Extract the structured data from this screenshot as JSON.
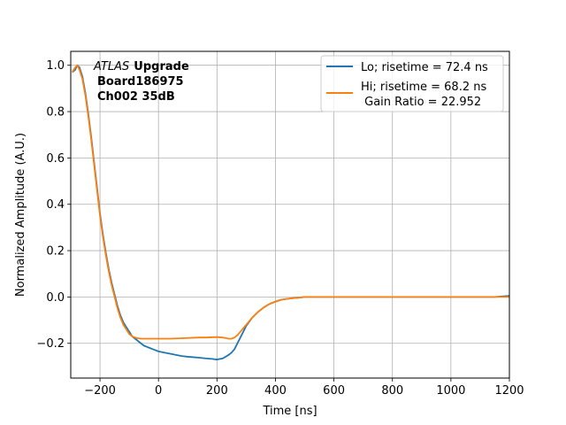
{
  "chart_data": {
    "type": "line",
    "xlabel": "Time [ns]",
    "ylabel": "Normalized Amplitude (A.U.)",
    "xlim": [
      -300,
      1200
    ],
    "ylim": [
      -0.35,
      1.06
    ],
    "xticks": [
      -200,
      0,
      200,
      400,
      600,
      800,
      1000,
      1200
    ],
    "yticks": [
      -0.2,
      0.0,
      0.2,
      0.4,
      0.6,
      0.8,
      1.0
    ],
    "xtick_labels": [
      "−200",
      "0",
      "200",
      "400",
      "600",
      "800",
      "1000",
      "1200"
    ],
    "ytick_labels": [
      "−0.2",
      "0.0",
      "0.2",
      "0.4",
      "0.6",
      "0.8",
      "1.0"
    ],
    "grid": true,
    "legend_position": "top-right",
    "annotation": {
      "line1_italic": "ATLAS",
      "line1_bold": "Upgrade",
      "line2": "Board186975",
      "line3": "Ch002 35dB"
    },
    "series": [
      {
        "name": "Lo; risetime = 72.4 ns",
        "color": "#1f77b4",
        "x": [
          -295,
          -285,
          -278,
          -270,
          -260,
          -250,
          -240,
          -230,
          -220,
          -210,
          -200,
          -190,
          -180,
          -170,
          -160,
          -150,
          -140,
          -130,
          -120,
          -110,
          -100,
          -90,
          -80,
          -70,
          -60,
          -50,
          -40,
          -30,
          -20,
          -10,
          0,
          20,
          40,
          60,
          80,
          100,
          120,
          140,
          160,
          180,
          200,
          220,
          240,
          250,
          260,
          270,
          280,
          290,
          300,
          320,
          340,
          360,
          380,
          400,
          420,
          440,
          460,
          480,
          500,
          550,
          600,
          650,
          700,
          750,
          800,
          850,
          900,
          950,
          1000,
          1050,
          1100,
          1150,
          1200
        ],
        "y": [
          0.97,
          0.98,
          1.0,
          0.99,
          0.95,
          0.88,
          0.79,
          0.69,
          0.58,
          0.47,
          0.36,
          0.27,
          0.19,
          0.12,
          0.06,
          0.01,
          -0.04,
          -0.08,
          -0.11,
          -0.13,
          -0.15,
          -0.17,
          -0.18,
          -0.19,
          -0.2,
          -0.21,
          -0.215,
          -0.22,
          -0.225,
          -0.23,
          -0.235,
          -0.24,
          -0.245,
          -0.25,
          -0.255,
          -0.258,
          -0.26,
          -0.262,
          -0.265,
          -0.267,
          -0.27,
          -0.265,
          -0.25,
          -0.24,
          -0.225,
          -0.2,
          -0.175,
          -0.15,
          -0.125,
          -0.09,
          -0.065,
          -0.045,
          -0.03,
          -0.02,
          -0.012,
          -0.008,
          -0.005,
          -0.003,
          0.0,
          0.0,
          0.0,
          0.0,
          0.0,
          0.0,
          0.0,
          0.0,
          0.0,
          0.0,
          0.0,
          0.0,
          0.0,
          0.0,
          0.005
        ]
      },
      {
        "name": "Hi; risetime = 68.2 ns\n Gain Ratio = 22.952",
        "color": "#ff7f0e",
        "x": [
          -295,
          -285,
          -278,
          -270,
          -260,
          -250,
          -240,
          -230,
          -220,
          -210,
          -200,
          -190,
          -180,
          -170,
          -160,
          -150,
          -140,
          -130,
          -120,
          -110,
          -100,
          -90,
          -80,
          -70,
          -60,
          -50,
          -40,
          -30,
          -20,
          -10,
          0,
          20,
          40,
          60,
          80,
          100,
          120,
          140,
          160,
          180,
          200,
          220,
          240,
          250,
          260,
          270,
          280,
          290,
          300,
          320,
          340,
          360,
          380,
          400,
          420,
          440,
          460,
          480,
          500,
          550,
          600,
          650,
          700,
          750,
          800,
          850,
          900,
          950,
          1000,
          1050,
          1100,
          1150,
          1200
        ],
        "y": [
          0.97,
          0.99,
          1.0,
          0.98,
          0.94,
          0.87,
          0.78,
          0.68,
          0.57,
          0.46,
          0.35,
          0.26,
          0.18,
          0.11,
          0.05,
          0.0,
          -0.05,
          -0.09,
          -0.12,
          -0.14,
          -0.16,
          -0.17,
          -0.175,
          -0.178,
          -0.18,
          -0.18,
          -0.18,
          -0.18,
          -0.18,
          -0.18,
          -0.18,
          -0.18,
          -0.18,
          -0.179,
          -0.178,
          -0.177,
          -0.176,
          -0.175,
          -0.175,
          -0.174,
          -0.173,
          -0.175,
          -0.18,
          -0.18,
          -0.175,
          -0.165,
          -0.15,
          -0.135,
          -0.12,
          -0.09,
          -0.065,
          -0.045,
          -0.03,
          -0.02,
          -0.012,
          -0.008,
          -0.005,
          -0.003,
          0.0,
          0.0,
          0.0,
          0.0,
          0.0,
          0.0,
          0.0,
          0.0,
          0.0,
          0.0,
          0.0,
          0.0,
          0.0,
          0.0,
          0.0
        ]
      }
    ]
  }
}
